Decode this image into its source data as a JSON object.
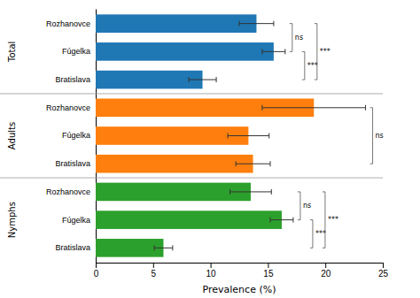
{
  "chart_data": {
    "type": "bar",
    "orientation": "horizontal",
    "xlabel": "Prevalence (%)",
    "xlim": [
      0,
      25
    ],
    "xticks": [
      0,
      5,
      10,
      15,
      20,
      25
    ],
    "grid": false,
    "categories": [
      "Rozhanovce",
      "Fúgelka",
      "Bratislava"
    ],
    "series": [
      {
        "name": "Total",
        "values": [
          14.0,
          15.5,
          9.3
        ],
        "errors": [
          1.5,
          1.0,
          1.2
        ],
        "annotations": [
          {
            "text": "ns",
            "between": [
              "Rozhanovce",
              "Fúgelka"
            ]
          },
          {
            "text": "***",
            "between": [
              "Fúgelka",
              "Bratislava"
            ]
          },
          {
            "text": "***",
            "between": [
              "Rozhanovce",
              "Bratislava"
            ]
          }
        ]
      },
      {
        "name": "Adults",
        "values": [
          19.0,
          13.3,
          13.7
        ],
        "errors": [
          4.5,
          1.8,
          1.5
        ],
        "annotations": [
          {
            "text": "ns",
            "between": [
              "Rozhanovce",
              "Bratislava"
            ]
          }
        ]
      },
      {
        "name": "Nymphs",
        "values": [
          13.5,
          16.2,
          5.9
        ],
        "errors": [
          1.8,
          1.0,
          0.8
        ],
        "annotations": [
          {
            "text": "ns",
            "between": [
              "Rozhanovce",
              "Fúgelka"
            ]
          },
          {
            "text": "***",
            "between": [
              "Fúgelka",
              "Bratislava"
            ]
          },
          {
            "text": "***",
            "between": [
              "Rozhanovce",
              "Bratislava"
            ]
          }
        ]
      }
    ]
  }
}
